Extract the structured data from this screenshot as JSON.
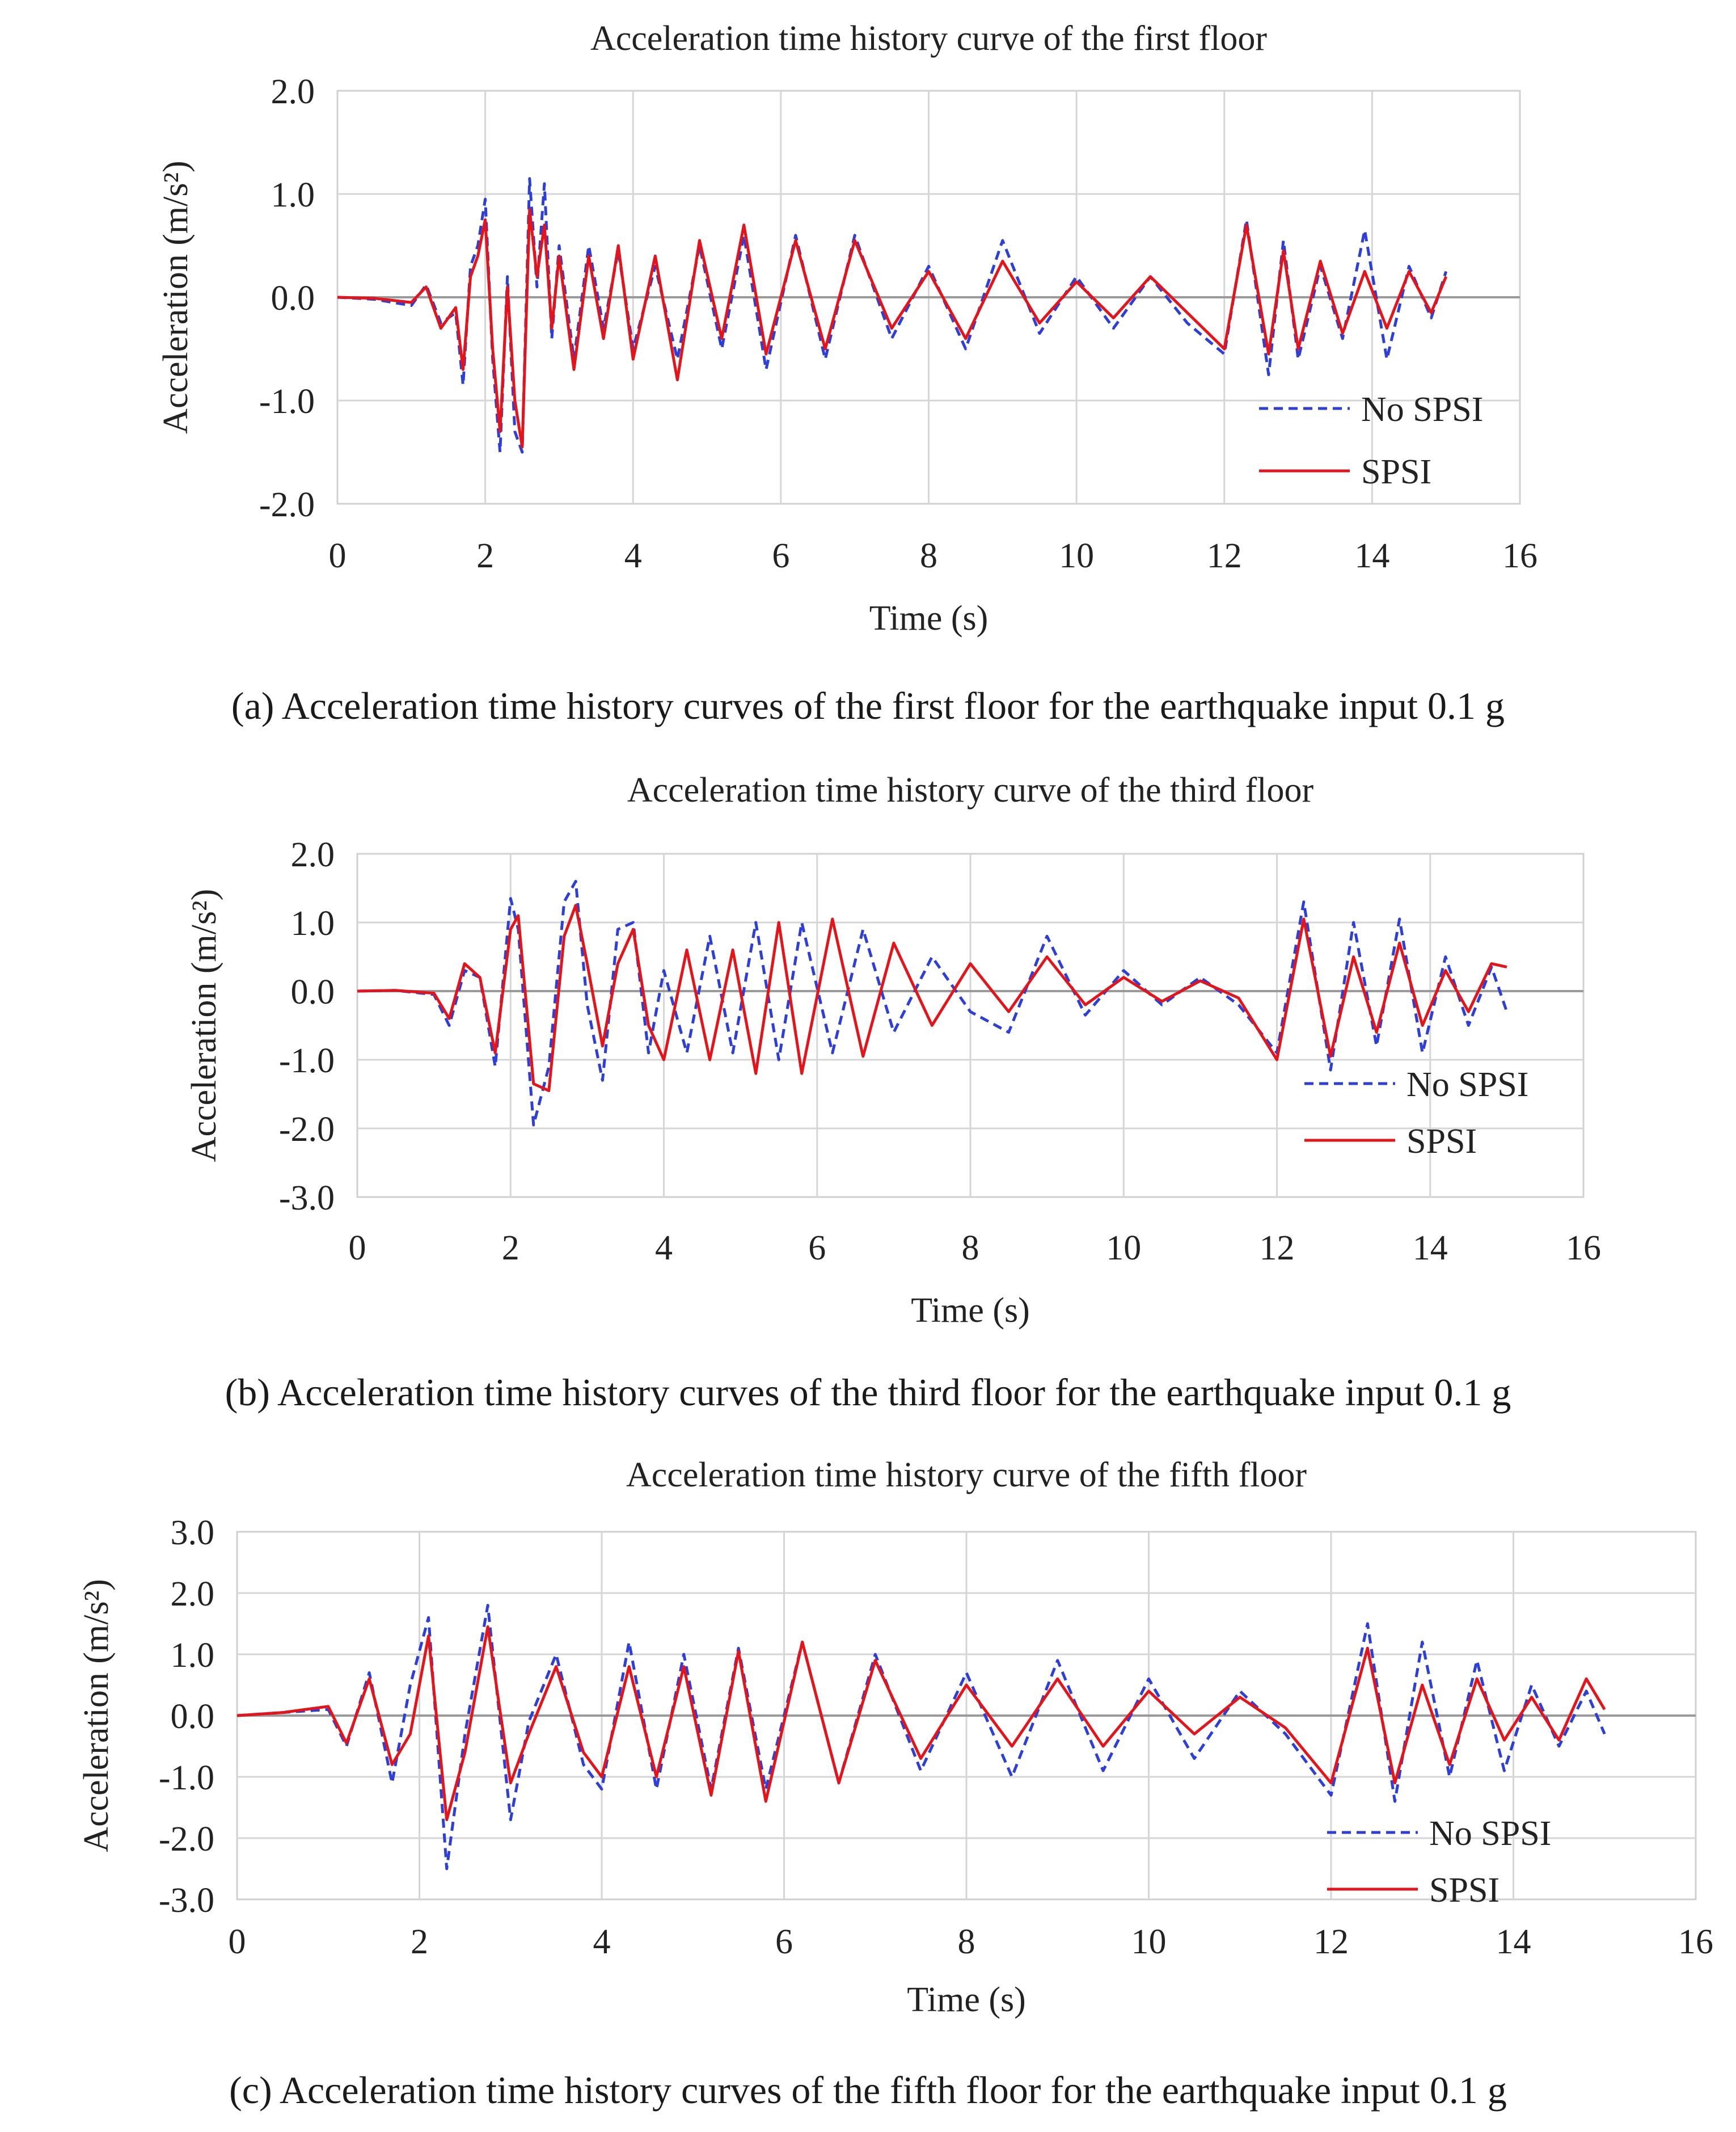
{
  "chart_data": [
    {
      "type": "line",
      "title": "Acceleration  time  history  curve  of  the  first  floor",
      "xlabel": "Time  (s)",
      "ylabel": "Acceleration  (m/s²)",
      "xlim": [
        0,
        16
      ],
      "ylim": [
        -2.0,
        2.0
      ],
      "xticks": [
        "0",
        "2",
        "4",
        "6",
        "8",
        "10",
        "12",
        "14",
        "16"
      ],
      "yticks": [
        "2.0",
        "1.0",
        "0.0",
        "-1.0",
        "-2.0"
      ],
      "legend": {
        "position": "bottom-right",
        "entries": [
          "No SPSI",
          "SPSI"
        ]
      },
      "series": [
        {
          "name": "No SPSI",
          "color": "#2d3fd6",
          "style": "dashed",
          "x": [
            0,
            0.5,
            1.0,
            1.2,
            1.4,
            1.6,
            1.7,
            1.8,
            1.9,
            2.0,
            2.1,
            2.2,
            2.3,
            2.4,
            2.5,
            2.6,
            2.7,
            2.8,
            2.9,
            3.0,
            3.2,
            3.4,
            3.6,
            3.8,
            4.0,
            4.3,
            4.6,
            4.9,
            5.2,
            5.5,
            5.8,
            6.2,
            6.6,
            7.0,
            7.5,
            8.0,
            8.5,
            9.0,
            9.5,
            10.0,
            10.5,
            11.0,
            11.5,
            12.0,
            12.3,
            12.6,
            12.8,
            13.0,
            13.3,
            13.6,
            13.9,
            14.2,
            14.5,
            14.8,
            15.0
          ],
          "y": [
            0,
            -0.02,
            -0.08,
            0.12,
            -0.25,
            -0.15,
            -0.85,
            0.3,
            0.5,
            0.95,
            -0.6,
            -1.5,
            0.2,
            -1.3,
            -1.5,
            1.15,
            0.1,
            1.1,
            -0.4,
            0.5,
            -0.6,
            0.5,
            -0.3,
            0.45,
            -0.5,
            0.3,
            -0.6,
            0.5,
            -0.5,
            0.6,
            -0.7,
            0.6,
            -0.6,
            0.6,
            -0.4,
            0.3,
            -0.5,
            0.55,
            -0.35,
            0.2,
            -0.3,
            0.2,
            -0.25,
            -0.55,
            0.75,
            -0.75,
            0.55,
            -0.6,
            0.3,
            -0.4,
            0.65,
            -0.6,
            0.3,
            -0.2,
            0.25
          ]
        },
        {
          "name": "SPSI",
          "color": "#e4141b",
          "style": "solid",
          "x": [
            0,
            0.5,
            1.0,
            1.2,
            1.4,
            1.6,
            1.7,
            1.8,
            1.9,
            2.0,
            2.1,
            2.2,
            2.3,
            2.4,
            2.5,
            2.6,
            2.7,
            2.8,
            2.9,
            3.0,
            3.2,
            3.4,
            3.6,
            3.8,
            4.0,
            4.3,
            4.6,
            4.9,
            5.2,
            5.5,
            5.8,
            6.2,
            6.6,
            7.0,
            7.5,
            8.0,
            8.5,
            9.0,
            9.5,
            10.0,
            10.5,
            11.0,
            11.5,
            12.0,
            12.3,
            12.6,
            12.8,
            13.0,
            13.3,
            13.6,
            13.9,
            14.2,
            14.5,
            14.8,
            15.0
          ],
          "y": [
            0,
            -0.01,
            -0.05,
            0.1,
            -0.3,
            -0.1,
            -0.7,
            0.2,
            0.4,
            0.75,
            -0.5,
            -1.3,
            0.1,
            -1.0,
            -1.45,
            0.85,
            0.2,
            0.7,
            -0.3,
            0.4,
            -0.7,
            0.4,
            -0.4,
            0.5,
            -0.6,
            0.4,
            -0.8,
            0.55,
            -0.4,
            0.7,
            -0.55,
            0.55,
            -0.5,
            0.55,
            -0.3,
            0.25,
            -0.4,
            0.35,
            -0.25,
            0.15,
            -0.2,
            0.2,
            -0.15,
            -0.5,
            0.7,
            -0.55,
            0.45,
            -0.5,
            0.35,
            -0.35,
            0.25,
            -0.3,
            0.25,
            -0.15,
            0.2
          ]
        }
      ]
    },
    {
      "type": "line",
      "title": "Acceleration  time  history  curve  of  the  third  floor",
      "xlabel": "Time  (s)",
      "ylabel": "Acceleration  (m/s²)",
      "xlim": [
        0,
        16
      ],
      "ylim": [
        -3.0,
        2.0
      ],
      "xticks": [
        "0",
        "2",
        "4",
        "6",
        "8",
        "10",
        "12",
        "14",
        "16"
      ],
      "yticks": [
        "2.0",
        "1.0",
        "0.0",
        "-1.0",
        "-2.0",
        "-3.0"
      ],
      "legend": {
        "position": "bottom-right",
        "entries": [
          "No SPSI",
          "SPSI"
        ]
      },
      "series": [
        {
          "name": "No SPSI",
          "color": "#2d3fd6",
          "style": "dashed",
          "x": [
            0,
            0.5,
            1.0,
            1.2,
            1.4,
            1.6,
            1.8,
            2.0,
            2.1,
            2.3,
            2.5,
            2.7,
            2.85,
            3.0,
            3.2,
            3.4,
            3.6,
            3.8,
            4.0,
            4.3,
            4.6,
            4.9,
            5.2,
            5.5,
            5.8,
            6.2,
            6.6,
            7.0,
            7.5,
            8.0,
            8.5,
            9.0,
            9.5,
            10.0,
            10.5,
            11.0,
            11.5,
            12.0,
            12.35,
            12.7,
            13.0,
            13.3,
            13.6,
            13.9,
            14.2,
            14.5,
            14.8,
            15.0
          ],
          "y": [
            0,
            0.01,
            -0.05,
            -0.5,
            0.3,
            0.2,
            -1.1,
            1.35,
            0.9,
            -1.95,
            -1.1,
            1.3,
            1.6,
            -0.2,
            -1.3,
            0.9,
            1.0,
            -0.9,
            0.3,
            -0.9,
            0.8,
            -0.9,
            1.0,
            -1.0,
            1.0,
            -0.9,
            0.9,
            -0.6,
            0.5,
            -0.3,
            -0.6,
            0.8,
            -0.35,
            0.3,
            -0.2,
            0.2,
            -0.2,
            -0.9,
            1.3,
            -1.15,
            1.0,
            -0.8,
            1.05,
            -0.9,
            0.5,
            -0.5,
            0.35,
            -0.3
          ]
        },
        {
          "name": "SPSI",
          "color": "#e4141b",
          "style": "solid",
          "x": [
            0,
            0.5,
            1.0,
            1.2,
            1.4,
            1.6,
            1.8,
            2.0,
            2.1,
            2.3,
            2.5,
            2.7,
            2.85,
            3.0,
            3.2,
            3.4,
            3.6,
            3.8,
            4.0,
            4.3,
            4.6,
            4.9,
            5.2,
            5.5,
            5.8,
            6.2,
            6.6,
            7.0,
            7.5,
            8.0,
            8.5,
            9.0,
            9.5,
            10.0,
            10.5,
            11.0,
            11.5,
            12.0,
            12.35,
            12.7,
            13.0,
            13.3,
            13.6,
            13.9,
            14.2,
            14.5,
            14.8,
            15.0
          ],
          "y": [
            0,
            0.01,
            -0.03,
            -0.4,
            0.4,
            0.2,
            -0.9,
            0.9,
            1.1,
            -1.35,
            -1.45,
            0.8,
            1.25,
            0.4,
            -0.8,
            0.4,
            0.9,
            -0.5,
            -1.0,
            0.6,
            -1.0,
            0.6,
            -1.2,
            1.0,
            -1.2,
            1.05,
            -0.95,
            0.7,
            -0.5,
            0.4,
            -0.3,
            0.5,
            -0.2,
            0.2,
            -0.15,
            0.15,
            -0.1,
            -1.0,
            1.05,
            -0.95,
            0.5,
            -0.6,
            0.7,
            -0.5,
            0.3,
            -0.3,
            0.4,
            0.35
          ]
        }
      ]
    },
    {
      "type": "line",
      "title": "Acceleration  time  history  curve  of  the  fifth  floor",
      "xlabel": "Time  (s)",
      "ylabel": "Acceleration  (m/s²)",
      "xlim": [
        0,
        16
      ],
      "ylim": [
        -3.0,
        3.0
      ],
      "xticks": [
        "0",
        "2",
        "4",
        "6",
        "8",
        "10",
        "12",
        "14",
        "16"
      ],
      "yticks": [
        "3.0",
        "2.0",
        "1.0",
        "0.0",
        "-1.0",
        "-2.0",
        "-3.0"
      ],
      "legend": {
        "position": "bottom-right",
        "entries": [
          "No SPSI",
          "SPSI"
        ]
      },
      "series": [
        {
          "name": "No SPSI",
          "color": "#2d3fd6",
          "style": "dashed",
          "x": [
            0,
            0.5,
            1.0,
            1.2,
            1.45,
            1.7,
            1.9,
            2.1,
            2.3,
            2.5,
            2.75,
            3.0,
            3.2,
            3.5,
            3.8,
            4.0,
            4.3,
            4.6,
            4.9,
            5.2,
            5.5,
            5.8,
            6.2,
            6.6,
            7.0,
            7.5,
            8.0,
            8.5,
            9.0,
            9.5,
            10.0,
            10.5,
            11.0,
            11.5,
            12.0,
            12.4,
            12.7,
            13.0,
            13.3,
            13.6,
            13.9,
            14.2,
            14.5,
            14.8,
            15.0
          ],
          "y": [
            0,
            0.05,
            0.1,
            -0.5,
            0.7,
            -1.1,
            0.5,
            1.6,
            -2.5,
            -0.3,
            1.8,
            -1.7,
            -0.1,
            1.0,
            -0.8,
            -1.2,
            1.2,
            -1.2,
            1.0,
            -1.2,
            1.1,
            -1.2,
            1.2,
            -1.1,
            1.0,
            -0.9,
            0.7,
            -1.0,
            0.9,
            -0.9,
            0.6,
            -0.7,
            0.4,
            -0.3,
            -1.3,
            1.5,
            -1.4,
            1.2,
            -1.0,
            0.9,
            -0.9,
            0.5,
            -0.5,
            0.4,
            -0.3
          ]
        },
        {
          "name": "SPSI",
          "color": "#e4141b",
          "style": "solid",
          "x": [
            0,
            0.5,
            1.0,
            1.2,
            1.45,
            1.7,
            1.9,
            2.1,
            2.3,
            2.5,
            2.75,
            3.0,
            3.2,
            3.5,
            3.8,
            4.0,
            4.3,
            4.6,
            4.9,
            5.2,
            5.5,
            5.8,
            6.2,
            6.6,
            7.0,
            7.5,
            8.0,
            8.5,
            9.0,
            9.5,
            10.0,
            10.5,
            11.0,
            11.5,
            12.0,
            12.4,
            12.7,
            13.0,
            13.3,
            13.6,
            13.9,
            14.2,
            14.5,
            14.8,
            15.0
          ],
          "y": [
            0,
            0.05,
            0.15,
            -0.45,
            0.6,
            -0.8,
            -0.3,
            1.3,
            -1.7,
            -0.6,
            1.45,
            -1.1,
            -0.3,
            0.8,
            -0.6,
            -1.0,
            0.8,
            -1.0,
            0.8,
            -1.3,
            1.05,
            -1.4,
            1.2,
            -1.1,
            0.9,
            -0.7,
            0.5,
            -0.5,
            0.6,
            -0.5,
            0.4,
            -0.3,
            0.3,
            -0.2,
            -1.1,
            1.1,
            -1.1,
            0.5,
            -0.8,
            0.6,
            -0.4,
            0.3,
            -0.4,
            0.6,
            0.1
          ]
        }
      ]
    }
  ],
  "captions": {
    "a": "(a)   Acceleration time history curves of the first floor for the earthquake input 0.1 g",
    "b": "(b)   Acceleration time history curves of the third floor for the earthquake input 0.1 g",
    "c": "(c)   Acceleration time history curves of the fifth floor for the earthquake input 0.1 g"
  }
}
